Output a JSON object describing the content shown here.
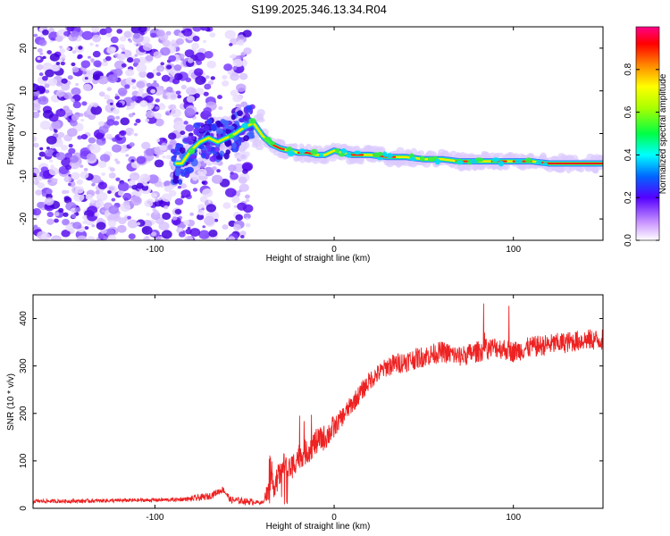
{
  "title": "S199.2025.346.13.34.R04",
  "chart_data": [
    {
      "type": "heatmap",
      "xlabel": "Height of straight line (km)",
      "ylabel": "Frequency (Hz)",
      "xlim": [
        -168,
        150
      ],
      "ylim": [
        -25,
        25
      ],
      "xticks": [
        -100,
        0,
        100
      ],
      "xtick_labels": [
        "-100",
        "0",
        "100"
      ],
      "yticks": [
        20,
        10,
        0,
        -10,
        -20
      ],
      "ytick_labels": [
        "20",
        "10",
        "0",
        "-10",
        "-20"
      ],
      "ridge_km": [
        -85,
        -80,
        -75,
        -70,
        -65,
        -60,
        -55,
        -50,
        -45,
        -40,
        -35,
        -30,
        -25,
        -20,
        -15,
        -10,
        -5,
        0,
        10,
        20,
        30,
        40,
        50,
        60,
        70,
        80,
        90,
        100,
        110,
        120,
        130,
        140,
        150
      ],
      "ridge_hz": [
        -7,
        -4,
        -2,
        -1,
        -2,
        -1,
        0,
        1.5,
        2.5,
        -0.5,
        -2.5,
        -3.5,
        -4,
        -4.5,
        -4.5,
        -5,
        -5,
        -4,
        -5,
        -5,
        -5.5,
        -5.5,
        -6,
        -6,
        -6.5,
        -6.5,
        -6.5,
        -6.5,
        -6.5,
        -7,
        -7,
        -7,
        -7
      ],
      "colorbar": {
        "label": "Normalized spectral amplitude",
        "range": [
          0,
          1
        ],
        "ticks": [
          0.0,
          0.2,
          0.4,
          0.6,
          0.8
        ],
        "tick_labels": [
          "0.0",
          "0.2",
          "0.4",
          "0.6",
          "0.8"
        ]
      }
    },
    {
      "type": "line",
      "xlabel": "Height of straight line (km)",
      "ylabel": "SNR (10 * v/v)",
      "xlim": [
        -168,
        150
      ],
      "ylim": [
        0,
        450
      ],
      "xticks": [
        -100,
        0,
        100
      ],
      "xtick_labels": [
        "-100",
        "0",
        "100"
      ],
      "yticks": [
        0,
        100,
        200,
        300,
        400
      ],
      "ytick_labels": [
        "0",
        "100",
        "200",
        "300",
        "400"
      ],
      "series": [
        {
          "name": "SNR",
          "color": "#ee2222",
          "x": [
            -168,
            -150,
            -130,
            -110,
            -90,
            -80,
            -70,
            -62,
            -60,
            -58,
            -50,
            -40,
            -38,
            -32,
            -28,
            -25,
            -20,
            -15,
            -10,
            -5,
            0,
            10,
            20,
            30,
            40,
            50,
            60,
            70,
            80,
            90,
            100,
            110,
            120,
            130,
            140,
            150
          ],
          "values": [
            15,
            15,
            16,
            17,
            18,
            20,
            25,
            40,
            30,
            18,
            15,
            12,
            25,
            60,
            90,
            80,
            110,
            120,
            140,
            150,
            170,
            220,
            270,
            300,
            310,
            320,
            330,
            320,
            330,
            340,
            330,
            340,
            345,
            350,
            355,
            355
          ]
        }
      ]
    }
  ]
}
